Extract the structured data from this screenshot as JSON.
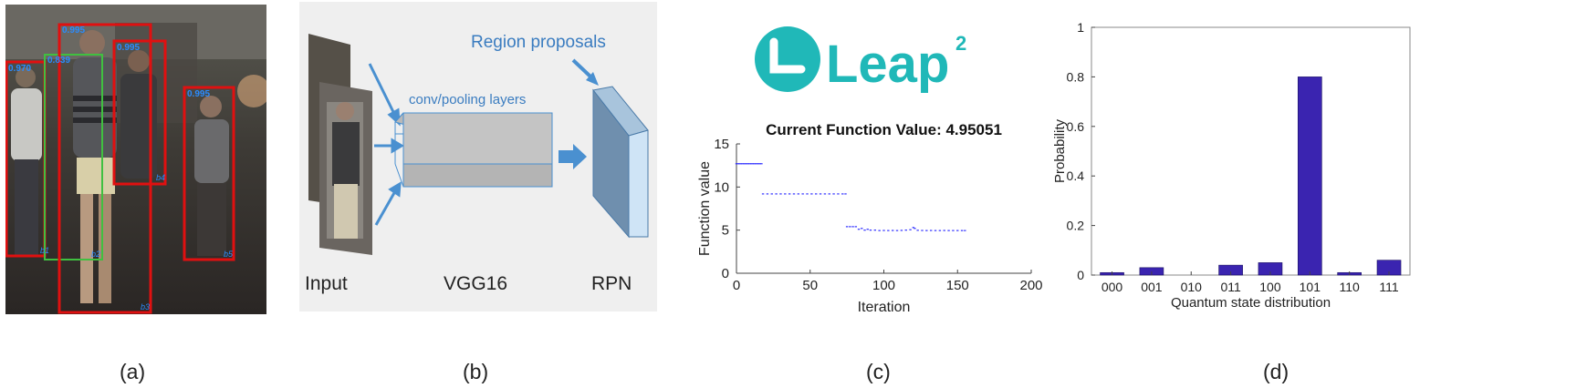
{
  "panel_a": {
    "caption": "(a)",
    "detections": [
      {
        "score": "0.970",
        "tag": "b1"
      },
      {
        "score": "0.839",
        "tag": "b2"
      },
      {
        "score": "0.995",
        "tag": "b3"
      },
      {
        "score": "0.995",
        "tag": "b4"
      },
      {
        "score": "0.995",
        "tag": "b5"
      }
    ],
    "colors": {
      "box_red": "#e01010",
      "box_green": "#40c040",
      "score_blue": "#2a8cff"
    }
  },
  "panel_b": {
    "caption": "(b)",
    "region_proposals": "Region proposals",
    "conv_layers": "conv/pooling layers",
    "input_label": "Input",
    "vgg_label": "VGG16",
    "rpn_label": "RPN",
    "colors": {
      "background": "#efefef",
      "arrow": "#4a90d0",
      "label_blue": "#3a7cc0"
    }
  },
  "panel_c": {
    "caption": "(c)",
    "logo_text": "Leap",
    "logo_superscript": "2",
    "logo_color": "#20b8b8",
    "chart_data": {
      "type": "scatter",
      "title": "Current Function Value: 4.95051",
      "xlabel": "Iteration",
      "ylabel": "Function value",
      "xlim": [
        0,
        200
      ],
      "ylim": [
        0,
        15
      ],
      "xticks": [
        0,
        50,
        100,
        150,
        200
      ],
      "yticks": [
        0,
        5,
        10,
        15
      ],
      "series": [
        {
          "x": [
            0,
            1,
            2,
            3,
            4,
            5,
            6,
            7,
            8,
            9,
            10,
            11,
            12,
            13,
            14,
            15,
            16,
            17
          ],
          "y": [
            12.7,
            12.7,
            12.7,
            12.7,
            12.7,
            12.7,
            12.7,
            12.7,
            12.7,
            12.7,
            12.7,
            12.7,
            12.7,
            12.7,
            12.7,
            12.7,
            12.7,
            12.7
          ]
        },
        {
          "x": [
            18,
            21,
            24,
            27,
            30,
            33,
            36,
            39,
            42,
            45,
            48,
            51,
            54,
            57,
            60,
            63,
            66,
            69,
            72,
            74
          ],
          "y": [
            9.2,
            9.2,
            9.2,
            9.2,
            9.2,
            9.2,
            9.2,
            9.2,
            9.2,
            9.2,
            9.2,
            9.2,
            9.2,
            9.2,
            9.2,
            9.2,
            9.2,
            9.2,
            9.2,
            9.2
          ]
        },
        {
          "x": [
            75,
            77,
            79,
            81,
            83,
            85,
            87,
            89,
            91,
            94,
            97,
            100,
            103,
            106,
            109,
            112,
            115,
            118,
            120,
            121,
            123,
            126,
            129,
            132,
            135,
            138,
            141,
            144,
            147,
            150,
            153,
            155
          ],
          "y": [
            5.4,
            5.4,
            5.4,
            5.4,
            5.1,
            5.2,
            5.0,
            5.1,
            5.0,
            5.0,
            4.95,
            4.96,
            4.95,
            4.96,
            4.95,
            4.97,
            5.0,
            5.05,
            5.3,
            5.2,
            4.98,
            4.96,
            4.95,
            4.96,
            4.95,
            4.95,
            4.96,
            4.95,
            4.95,
            4.95,
            4.95,
            4.95
          ]
        }
      ],
      "marker_color": "#3030ff"
    }
  },
  "panel_d": {
    "caption": "(d)",
    "chart_data": {
      "type": "bar",
      "xlabel": "Quantum state distribution",
      "ylabel": "Probability",
      "ylim": [
        0,
        1
      ],
      "yticks": [
        0,
        0.2,
        0.4,
        0.6,
        0.8,
        1
      ],
      "ytick_labels": [
        "0",
        "0.2",
        "0.4",
        "0.6",
        "0.8",
        "1"
      ],
      "categories": [
        "000",
        "001",
        "010",
        "011",
        "100",
        "101",
        "110",
        "111"
      ],
      "values": [
        0.01,
        0.03,
        0.0,
        0.04,
        0.05,
        0.8,
        0.01,
        0.06
      ],
      "bar_color": "#3a24b0"
    }
  }
}
